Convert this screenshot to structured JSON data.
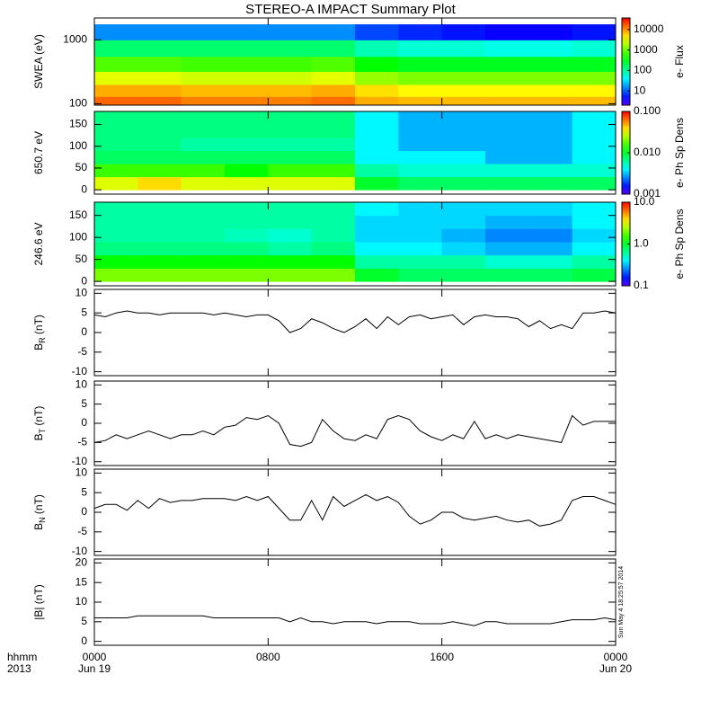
{
  "chart_data": [
    {
      "type": "heatmap",
      "title": "STEREO-A IMPACT Summary Plot",
      "ylabel": "SWEA (eV)",
      "log_y": true,
      "xlim": [
        0,
        24
      ],
      "ylim": [
        95,
        2200
      ],
      "yticks": [
        100,
        1000
      ],
      "xbins": [
        0,
        2,
        4,
        6,
        8,
        10,
        12,
        14,
        16,
        18,
        20,
        22,
        24
      ],
      "ybins": [
        95,
        130,
        200,
        320,
        550,
        1000,
        1750
      ],
      "z": [
        [
          15000,
          15000,
          12000,
          12000,
          12000,
          14000,
          8000,
          7000,
          7000,
          7000,
          7000,
          7000
        ],
        [
          8000,
          8000,
          7000,
          7000,
          7000,
          8000,
          5000,
          4000,
          4000,
          4000,
          4000,
          4000
        ],
        [
          3000,
          3000,
          2500,
          2500,
          2500,
          3000,
          1500,
          1200,
          1200,
          1200,
          1200,
          1200
        ],
        [
          800,
          800,
          700,
          700,
          700,
          800,
          400,
          300,
          300,
          300,
          300,
          300
        ],
        [
          150,
          150,
          150,
          150,
          150,
          150,
          80,
          60,
          60,
          50,
          50,
          60
        ],
        [
          15,
          15,
          15,
          15,
          15,
          15,
          8,
          6,
          5,
          4,
          4,
          5
        ]
      ],
      "colormap": "rainbow",
      "log_z": true,
      "zlim": [
        2,
        37000
      ],
      "zticks": [
        10,
        100,
        1000,
        10000
      ],
      "zlabel": "e- Flux"
    },
    {
      "type": "heatmap",
      "ylabel": "650.7 eV",
      "log_y": false,
      "xlim": [
        0,
        24
      ],
      "ylim": [
        -10,
        180
      ],
      "yticks": [
        0,
        50,
        100,
        150
      ],
      "xbins": [
        0,
        2,
        4,
        6,
        8,
        10,
        12,
        14,
        16,
        18,
        20,
        22,
        24
      ],
      "ybins": [
        0,
        30,
        60,
        90,
        120,
        150,
        180
      ],
      "z": [
        [
          0.03,
          0.04,
          0.03,
          0.03,
          0.03,
          0.03,
          0.01,
          0.008,
          0.008,
          0.008,
          0.008,
          0.008
        ],
        [
          0.015,
          0.015,
          0.015,
          0.012,
          0.015,
          0.015,
          0.006,
          0.005,
          0.005,
          0.005,
          0.005,
          0.005
        ],
        [
          0.008,
          0.008,
          0.008,
          0.008,
          0.008,
          0.008,
          0.004,
          0.004,
          0.004,
          0.003,
          0.003,
          0.004
        ],
        [
          0.007,
          0.007,
          0.006,
          0.006,
          0.006,
          0.006,
          0.004,
          0.003,
          0.003,
          0.003,
          0.003,
          0.004
        ],
        [
          0.007,
          0.007,
          0.007,
          0.007,
          0.007,
          0.007,
          0.004,
          0.003,
          0.003,
          0.003,
          0.003,
          0.004
        ],
        [
          0.007,
          0.007,
          0.007,
          0.007,
          0.007,
          0.007,
          0.004,
          0.003,
          0.003,
          0.003,
          0.003,
          0.004
        ]
      ],
      "colormap": "rainbow",
      "log_z": true,
      "zlim": [
        0.001,
        0.1
      ],
      "zticks": [
        {
          "value": 0.001,
          "label": "0.001"
        },
        {
          "value": 0.01,
          "label": "0.010"
        },
        {
          "value": 0.1,
          "label": "0.100"
        }
      ],
      "zlabel": "e- Ph Sp Dens"
    },
    {
      "type": "heatmap",
      "ylabel": "246.6 eV",
      "log_y": false,
      "xlim": [
        0,
        24
      ],
      "ylim": [
        -10,
        180
      ],
      "yticks": [
        0,
        50,
        100,
        150
      ],
      "xbins": [
        0,
        2,
        4,
        6,
        8,
        10,
        12,
        14,
        16,
        18,
        20,
        22,
        24
      ],
      "ybins": [
        0,
        30,
        60,
        90,
        120,
        150,
        180
      ],
      "z": [
        [
          2,
          2,
          2,
          2,
          2,
          2,
          1,
          0.8,
          0.8,
          0.8,
          0.8,
          0.9
        ],
        [
          1.2,
          1.2,
          1.2,
          1.2,
          1.2,
          1.2,
          0.6,
          0.6,
          0.6,
          0.5,
          0.5,
          0.6
        ],
        [
          0.7,
          0.7,
          0.7,
          0.7,
          0.6,
          0.7,
          0.4,
          0.4,
          0.35,
          0.3,
          0.3,
          0.4
        ],
        [
          0.6,
          0.6,
          0.6,
          0.55,
          0.5,
          0.6,
          0.35,
          0.35,
          0.3,
          0.25,
          0.25,
          0.35
        ],
        [
          0.6,
          0.6,
          0.6,
          0.6,
          0.6,
          0.6,
          0.35,
          0.35,
          0.35,
          0.3,
          0.3,
          0.4
        ],
        [
          0.6,
          0.6,
          0.6,
          0.6,
          0.6,
          0.6,
          0.4,
          0.35,
          0.35,
          0.35,
          0.35,
          0.4
        ]
      ],
      "colormap": "rainbow",
      "log_z": true,
      "zlim": [
        0.1,
        10
      ],
      "zticks": [
        {
          "value": 0.1,
          "label": "0.1"
        },
        {
          "value": 1,
          "label": "1.0"
        },
        {
          "value": 10,
          "label": "10.0"
        }
      ],
      "zlabel": "e- Ph Sp Dens"
    },
    {
      "type": "line",
      "ylabel": {
        "text": "B",
        "sub": "R",
        "unit": " (nT)"
      },
      "color": "#000000",
      "xlim": [
        0,
        24
      ],
      "ylim": [
        -11,
        11
      ],
      "yticks": [
        -10,
        -5,
        0,
        5,
        10
      ],
      "x": [
        0,
        0.5,
        1,
        1.5,
        2,
        2.5,
        3,
        3.5,
        4,
        4.5,
        5,
        5.5,
        6,
        6.5,
        7,
        7.5,
        8,
        8.5,
        9,
        9.5,
        10,
        10.5,
        11,
        11.5,
        12,
        12.5,
        13,
        13.5,
        14,
        14.5,
        15,
        15.5,
        16,
        16.5,
        17,
        17.5,
        18,
        18.5,
        19,
        19.5,
        20,
        20.5,
        21,
        21.5,
        22,
        22.5,
        23,
        23.5,
        24
      ],
      "values": [
        4.5,
        4,
        5,
        5.5,
        5,
        5,
        4.5,
        5,
        5,
        5,
        5,
        4.5,
        5,
        4.5,
        4,
        4.5,
        4.5,
        3,
        0,
        1,
        3.5,
        2.5,
        1,
        0,
        1.5,
        3.5,
        1,
        4,
        2,
        4,
        4.5,
        3.5,
        4,
        4.5,
        2,
        4,
        4.5,
        4,
        4,
        3.5,
        1.5,
        3,
        1,
        2,
        1,
        5,
        5,
        5.5,
        5
      ]
    },
    {
      "type": "line",
      "ylabel": {
        "text": "B",
        "sub": "T",
        "unit": " (nT)"
      },
      "color": "#000000",
      "xlim": [
        0,
        24
      ],
      "ylim": [
        -11,
        11
      ],
      "yticks": [
        -10,
        -5,
        0,
        5,
        10
      ],
      "x": [
        0,
        0.5,
        1,
        1.5,
        2,
        2.5,
        3,
        3.5,
        4,
        4.5,
        5,
        5.5,
        6,
        6.5,
        7,
        7.5,
        8,
        8.5,
        9,
        9.5,
        10,
        10.5,
        11,
        11.5,
        12,
        12.5,
        13,
        13.5,
        14,
        14.5,
        15,
        15.5,
        16,
        16.5,
        17,
        17.5,
        18,
        18.5,
        19,
        19.5,
        20,
        20.5,
        21,
        21.5,
        22,
        22.5,
        23,
        23.5,
        24
      ],
      "values": [
        -5,
        -4.5,
        -3,
        -4,
        -3,
        -2,
        -3,
        -4,
        -3,
        -3,
        -2,
        -3,
        -1,
        -0.5,
        1.5,
        1,
        2,
        0,
        -5.5,
        -6,
        -5,
        1,
        -2,
        -4,
        -4.5,
        -3,
        -4,
        1,
        2,
        1,
        -2,
        -3.5,
        -4.5,
        -3,
        -4,
        0.5,
        -4,
        -3,
        -4,
        -3,
        -3.5,
        -4,
        -4.5,
        -5,
        2,
        -0.5,
        0.5,
        0.5,
        0.5
      ]
    },
    {
      "type": "line",
      "ylabel": {
        "text": "B",
        "sub": "N",
        "unit": " (nT)"
      },
      "color": "#000000",
      "xlim": [
        0,
        24
      ],
      "ylim": [
        -11,
        11
      ],
      "yticks": [
        -10,
        -5,
        0,
        5,
        10
      ],
      "x": [
        0,
        0.5,
        1,
        1.5,
        2,
        2.5,
        3,
        3.5,
        4,
        4.5,
        5,
        5.5,
        6,
        6.5,
        7,
        7.5,
        8,
        8.5,
        9,
        9.5,
        10,
        10.5,
        11,
        11.5,
        12,
        12.5,
        13,
        13.5,
        14,
        14.5,
        15,
        15.5,
        16,
        16.5,
        17,
        17.5,
        18,
        18.5,
        19,
        19.5,
        20,
        20.5,
        21,
        21.5,
        22,
        22.5,
        23,
        23.5,
        24
      ],
      "values": [
        1,
        2,
        2,
        0.5,
        3,
        1,
        3.5,
        2.5,
        3,
        3,
        3.5,
        3.5,
        3.5,
        3,
        4,
        3,
        4,
        1,
        -2,
        -2,
        3,
        -2,
        4,
        1.5,
        3,
        4.5,
        3,
        4,
        2.5,
        -1,
        -3,
        -2,
        0,
        0,
        -1.5,
        -2,
        -1.5,
        -1,
        -2,
        -2.5,
        -2,
        -3.5,
        -3,
        -2,
        3,
        4,
        4,
        3,
        2
      ]
    },
    {
      "type": "line",
      "ylabel": {
        "text": "|B|",
        "unit": " (nT)"
      },
      "color": "#000000",
      "xlim": [
        0,
        24
      ],
      "ylim": [
        -1,
        21
      ],
      "yticks": [
        0,
        5,
        10,
        15,
        20
      ],
      "x": [
        0,
        0.5,
        1,
        1.5,
        2,
        2.5,
        3,
        3.5,
        4,
        4.5,
        5,
        5.5,
        6,
        6.5,
        7,
        7.5,
        8,
        8.5,
        9,
        9.5,
        10,
        10.5,
        11,
        11.5,
        12,
        12.5,
        13,
        13.5,
        14,
        14.5,
        15,
        15.5,
        16,
        16.5,
        17,
        17.5,
        18,
        18.5,
        19,
        19.5,
        20,
        20.5,
        21,
        21.5,
        22,
        22.5,
        23,
        23.5,
        24
      ],
      "values": [
        6,
        6,
        6,
        6,
        6.5,
        6.5,
        6.5,
        6.5,
        6.5,
        6.5,
        6.5,
        6,
        6,
        6,
        6,
        6,
        6,
        6,
        5,
        6,
        5,
        5,
        4.5,
        5,
        5,
        5,
        4.5,
        5,
        5,
        5,
        4.5,
        4.5,
        4.5,
        5,
        4.5,
        4,
        5,
        5,
        4.5,
        4.5,
        4.5,
        4.5,
        4.5,
        5,
        5.5,
        5.5,
        5.5,
        6,
        5.5
      ],
      "xticks": [
        {
          "value": 0,
          "label": "0000"
        },
        {
          "value": 8,
          "label": "0800"
        },
        {
          "value": 16,
          "label": "1600"
        },
        {
          "value": 24,
          "label": "0000"
        }
      ],
      "date_labels": [
        {
          "value": 0,
          "label": "Jun 19"
        },
        {
          "value": 24,
          "label": "Jun 20"
        }
      ],
      "xlabel": "hhmm",
      "year": "2013",
      "annotation": "Sun May  4 18:25:57 2014"
    }
  ]
}
